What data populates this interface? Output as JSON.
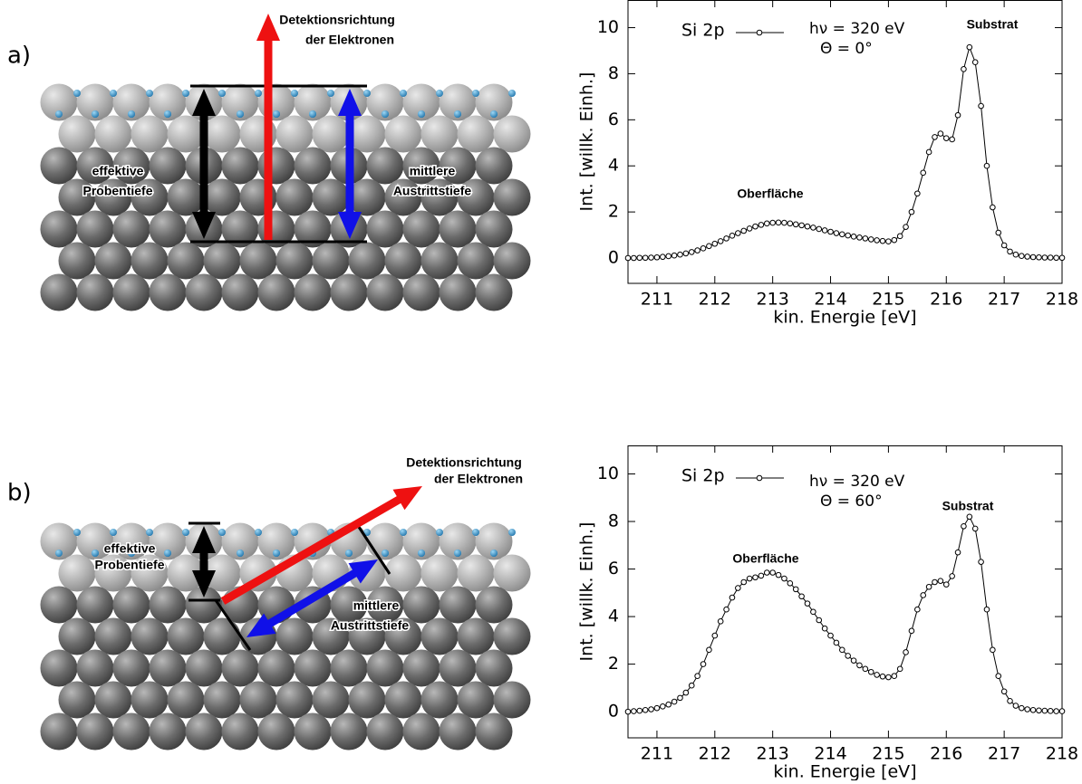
{
  "panels": [
    {
      "label": "a)",
      "detection": [
        "Detektionsrichtung",
        "der Elektronen"
      ],
      "sampling_depth": [
        "effektive",
        "Probentiefe"
      ],
      "escape_depth": [
        "mittlere",
        "Austrittstiefe"
      ]
    },
    {
      "label": "b)",
      "detection": [
        "Detektionsrichtung",
        "der Elektronen"
      ],
      "sampling_depth": [
        "effektive",
        "Probentiefe"
      ],
      "escape_depth": [
        "mittlere",
        "Austrittstiefe"
      ]
    }
  ],
  "chart_data": [
    {
      "type": "line",
      "xlabel": "kin. Energie [eV]",
      "ylabel": "Int. [willk. Einh.]",
      "annotations": [
        "hν = 320 eV",
        "Θ = 0°",
        "Substrat",
        "Oberfläche"
      ],
      "xlim": [
        210.5,
        218
      ],
      "ylim": [
        -1.1,
        11.2
      ],
      "xticks": [
        211,
        212,
        213,
        214,
        215,
        216,
        217,
        218
      ],
      "yticks": [
        0,
        2,
        4,
        6,
        8,
        10
      ],
      "x": [
        210.5,
        210.6,
        210.7,
        210.8,
        210.9,
        211.0,
        211.1,
        211.2,
        211.3,
        211.4,
        211.5,
        211.6,
        211.7,
        211.8,
        211.9,
        212.0,
        212.1,
        212.2,
        212.3,
        212.4,
        212.5,
        212.6,
        212.7,
        212.8,
        212.9,
        213.0,
        213.1,
        213.2,
        213.3,
        213.4,
        213.5,
        213.6,
        213.7,
        213.8,
        213.9,
        214.0,
        214.1,
        214.2,
        214.3,
        214.4,
        214.5,
        214.6,
        214.7,
        214.8,
        214.9,
        215.0,
        215.1,
        215.2,
        215.3,
        215.4,
        215.5,
        215.6,
        215.7,
        215.8,
        215.9,
        216.0,
        216.1,
        216.2,
        216.3,
        216.4,
        216.5,
        216.6,
        216.7,
        216.8,
        216.9,
        217.0,
        217.1,
        217.2,
        217.3,
        217.4,
        217.5,
        217.6,
        217.7,
        217.8,
        217.9,
        218.0
      ],
      "series": [
        {
          "name": "Si 2p",
          "color": "#000000",
          "values": [
            0.0,
            0.0,
            0.01,
            0.01,
            0.02,
            0.03,
            0.05,
            0.08,
            0.11,
            0.15,
            0.2,
            0.26,
            0.33,
            0.42,
            0.52,
            0.62,
            0.73,
            0.85,
            0.97,
            1.08,
            1.18,
            1.28,
            1.37,
            1.44,
            1.5,
            1.53,
            1.54,
            1.53,
            1.5,
            1.46,
            1.42,
            1.37,
            1.32,
            1.26,
            1.2,
            1.14,
            1.08,
            1.03,
            0.98,
            0.93,
            0.89,
            0.85,
            0.81,
            0.77,
            0.74,
            0.72,
            0.78,
            0.95,
            1.35,
            2.0,
            2.8,
            3.7,
            4.6,
            5.25,
            5.4,
            5.2,
            5.15,
            6.2,
            8.2,
            9.15,
            8.5,
            6.6,
            4.0,
            2.2,
            1.1,
            0.55,
            0.28,
            0.15,
            0.09,
            0.06,
            0.04,
            0.03,
            0.02,
            0.02,
            0.01,
            0.01
          ]
        }
      ]
    },
    {
      "type": "line",
      "xlabel": "kin. Energie [eV]",
      "ylabel": "Int. [willk. Einh.]",
      "annotations": [
        "hν = 320 eV",
        "Θ = 60°",
        "Substrat",
        "Oberfläche"
      ],
      "xlim": [
        210.5,
        218
      ],
      "ylim": [
        -1.1,
        11.2
      ],
      "xticks": [
        211,
        212,
        213,
        214,
        215,
        216,
        217,
        218
      ],
      "yticks": [
        0,
        2,
        4,
        6,
        8,
        10
      ],
      "x": [
        210.5,
        210.6,
        210.7,
        210.8,
        210.9,
        211.0,
        211.1,
        211.2,
        211.3,
        211.4,
        211.5,
        211.6,
        211.7,
        211.8,
        211.9,
        212.0,
        212.1,
        212.2,
        212.3,
        212.4,
        212.5,
        212.6,
        212.7,
        212.8,
        212.9,
        213.0,
        213.1,
        213.2,
        213.3,
        213.4,
        213.5,
        213.6,
        213.7,
        213.8,
        213.9,
        214.0,
        214.1,
        214.2,
        214.3,
        214.4,
        214.5,
        214.6,
        214.7,
        214.8,
        214.9,
        215.0,
        215.1,
        215.2,
        215.3,
        215.4,
        215.5,
        215.6,
        215.7,
        215.8,
        215.9,
        216.0,
        216.1,
        216.2,
        216.3,
        216.4,
        216.5,
        216.6,
        216.7,
        216.8,
        216.9,
        217.0,
        217.1,
        217.2,
        217.3,
        217.4,
        217.5,
        217.6,
        217.7,
        217.8,
        217.9,
        218.0
      ],
      "series": [
        {
          "name": "Si 2p",
          "color": "#000000",
          "values": [
            0.0,
            0.02,
            0.04,
            0.07,
            0.1,
            0.15,
            0.22,
            0.3,
            0.42,
            0.58,
            0.8,
            1.1,
            1.5,
            2.0,
            2.6,
            3.2,
            3.8,
            4.3,
            4.8,
            5.2,
            5.45,
            5.6,
            5.65,
            5.72,
            5.85,
            5.85,
            5.75,
            5.6,
            5.4,
            5.15,
            4.85,
            4.55,
            4.2,
            3.85,
            3.5,
            3.2,
            2.9,
            2.6,
            2.35,
            2.15,
            1.95,
            1.8,
            1.67,
            1.55,
            1.48,
            1.45,
            1.5,
            1.8,
            2.5,
            3.4,
            4.3,
            4.9,
            5.25,
            5.45,
            5.5,
            5.35,
            5.7,
            6.7,
            7.8,
            8.2,
            7.7,
            6.3,
            4.3,
            2.6,
            1.5,
            0.85,
            0.45,
            0.25,
            0.15,
            0.1,
            0.07,
            0.05,
            0.04,
            0.03,
            0.02,
            0.02
          ]
        }
      ]
    }
  ]
}
